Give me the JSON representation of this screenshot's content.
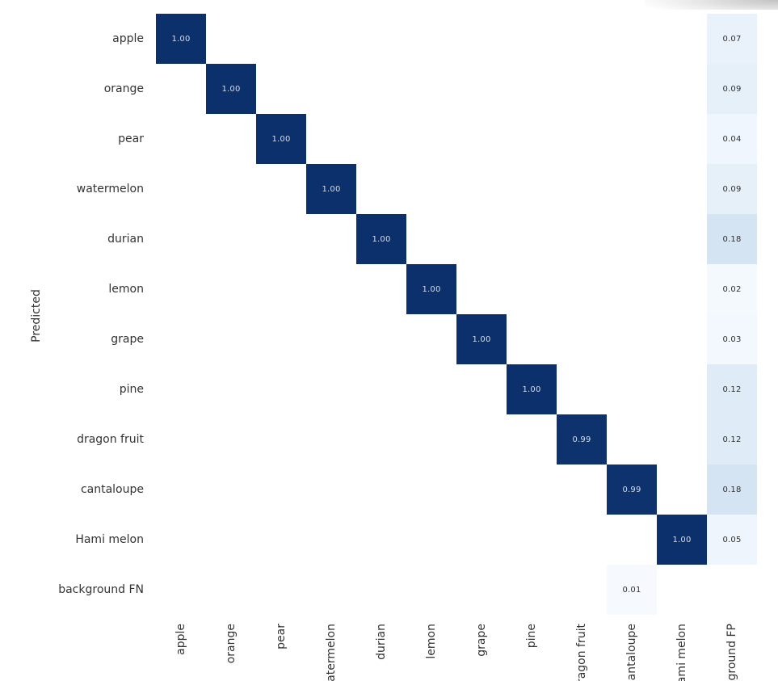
{
  "figure": {
    "y_axis_label": "Predicted"
  },
  "chart_data": {
    "type": "heatmap",
    "title": "",
    "xlabel": "",
    "ylabel": "Predicted",
    "legend_position": "none",
    "grid": false,
    "colorscale": "Blues",
    "x_categories": [
      "apple",
      "orange",
      "pear",
      "watermelon",
      "durian",
      "lemon",
      "grape",
      "pine",
      "dragon fruit",
      "cantaloupe",
      "Hami melon",
      "background FP"
    ],
    "y_categories": [
      "apple",
      "orange",
      "pear",
      "watermelon",
      "durian",
      "lemon",
      "grape",
      "pine",
      "dragon fruit",
      "cantaloupe",
      "Hami melon",
      "background FN"
    ],
    "cells": [
      {
        "row": 0,
        "col": 0,
        "value": 1.0,
        "label": "1.00"
      },
      {
        "row": 1,
        "col": 1,
        "value": 1.0,
        "label": "1.00"
      },
      {
        "row": 2,
        "col": 2,
        "value": 1.0,
        "label": "1.00"
      },
      {
        "row": 3,
        "col": 3,
        "value": 1.0,
        "label": "1.00"
      },
      {
        "row": 4,
        "col": 4,
        "value": 1.0,
        "label": "1.00"
      },
      {
        "row": 5,
        "col": 5,
        "value": 1.0,
        "label": "1.00"
      },
      {
        "row": 6,
        "col": 6,
        "value": 1.0,
        "label": "1.00"
      },
      {
        "row": 7,
        "col": 7,
        "value": 1.0,
        "label": "1.00"
      },
      {
        "row": 8,
        "col": 8,
        "value": 0.99,
        "label": "0.99"
      },
      {
        "row": 9,
        "col": 9,
        "value": 0.99,
        "label": "0.99"
      },
      {
        "row": 10,
        "col": 10,
        "value": 1.0,
        "label": "1.00"
      },
      {
        "row": 0,
        "col": 11,
        "value": 0.07,
        "label": "0.07"
      },
      {
        "row": 1,
        "col": 11,
        "value": 0.09,
        "label": "0.09"
      },
      {
        "row": 2,
        "col": 11,
        "value": 0.04,
        "label": "0.04"
      },
      {
        "row": 3,
        "col": 11,
        "value": 0.09,
        "label": "0.09"
      },
      {
        "row": 4,
        "col": 11,
        "value": 0.18,
        "label": "0.18"
      },
      {
        "row": 5,
        "col": 11,
        "value": 0.02,
        "label": "0.02"
      },
      {
        "row": 6,
        "col": 11,
        "value": 0.03,
        "label": "0.03"
      },
      {
        "row": 7,
        "col": 11,
        "value": 0.12,
        "label": "0.12"
      },
      {
        "row": 8,
        "col": 11,
        "value": 0.12,
        "label": "0.12"
      },
      {
        "row": 9,
        "col": 11,
        "value": 0.18,
        "label": "0.18"
      },
      {
        "row": 10,
        "col": 11,
        "value": 0.05,
        "label": "0.05"
      },
      {
        "row": 11,
        "col": 9,
        "value": 0.01,
        "label": "0.01"
      }
    ],
    "colors": {
      "background": "#ffffff",
      "cell_values": {
        "1.00": "#0c306b",
        "0.99": "#0d326d",
        "0.18": "#d4e4f3",
        "0.12": "#dfecf8",
        "0.09": "#e5f0f9",
        "0.07": "#e9f2fb",
        "0.05": "#eef5fc",
        "0.04": "#f0f6fd",
        "0.03": "#f2f8fd",
        "0.02": "#f4f9fe",
        "0.01": "#f6fafe"
      },
      "text_on_dark": "#d6dce8",
      "text_on_light": "#2f2f2f",
      "tick_label": "#333333"
    }
  }
}
